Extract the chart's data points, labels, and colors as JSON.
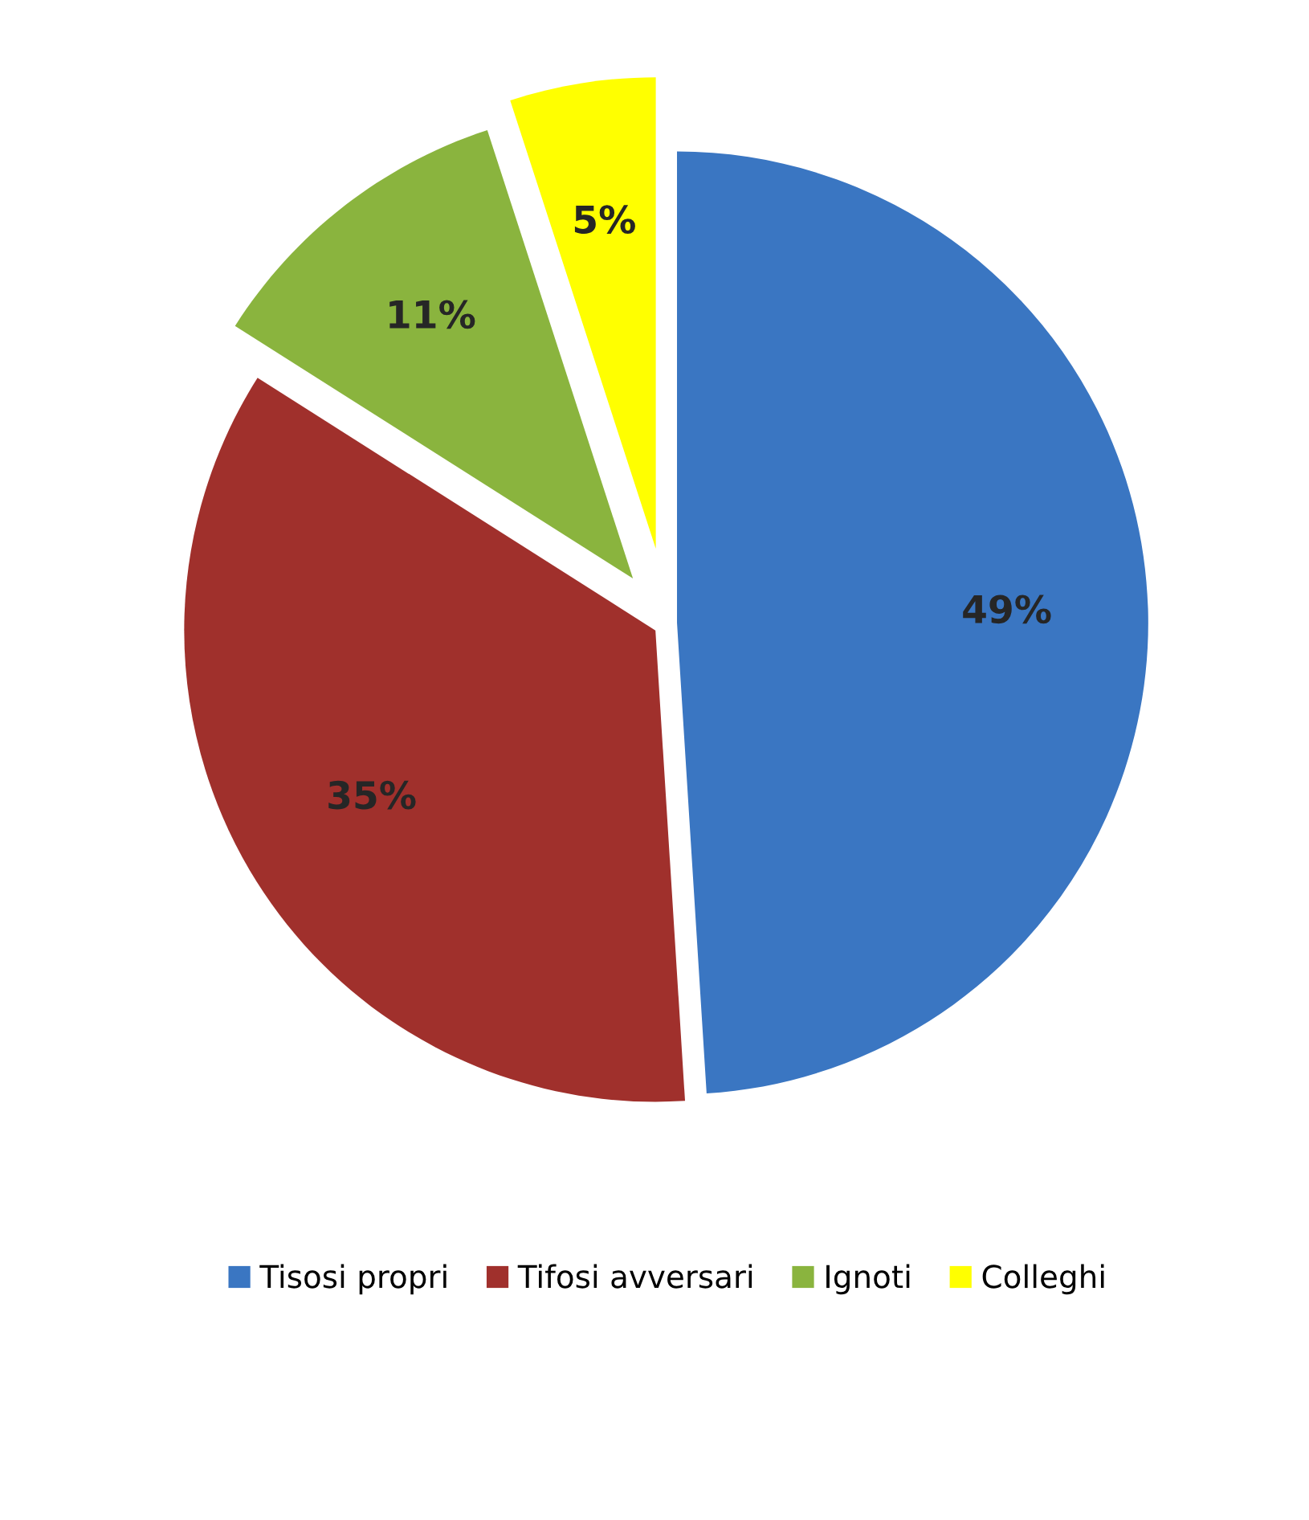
{
  "chart_data": {
    "type": "pie",
    "categories": [
      "Tisosi propri",
      "Tifosi avversari",
      "Ignoti",
      "Colleghi"
    ],
    "values": [
      49,
      35,
      11,
      5
    ],
    "colors": [
      "#3a76c2",
      "#a0302c",
      "#8ab43e",
      "#ffff00"
    ],
    "value_labels": [
      "49%",
      "35%",
      "11%",
      "5%"
    ],
    "legend": "bottom"
  }
}
